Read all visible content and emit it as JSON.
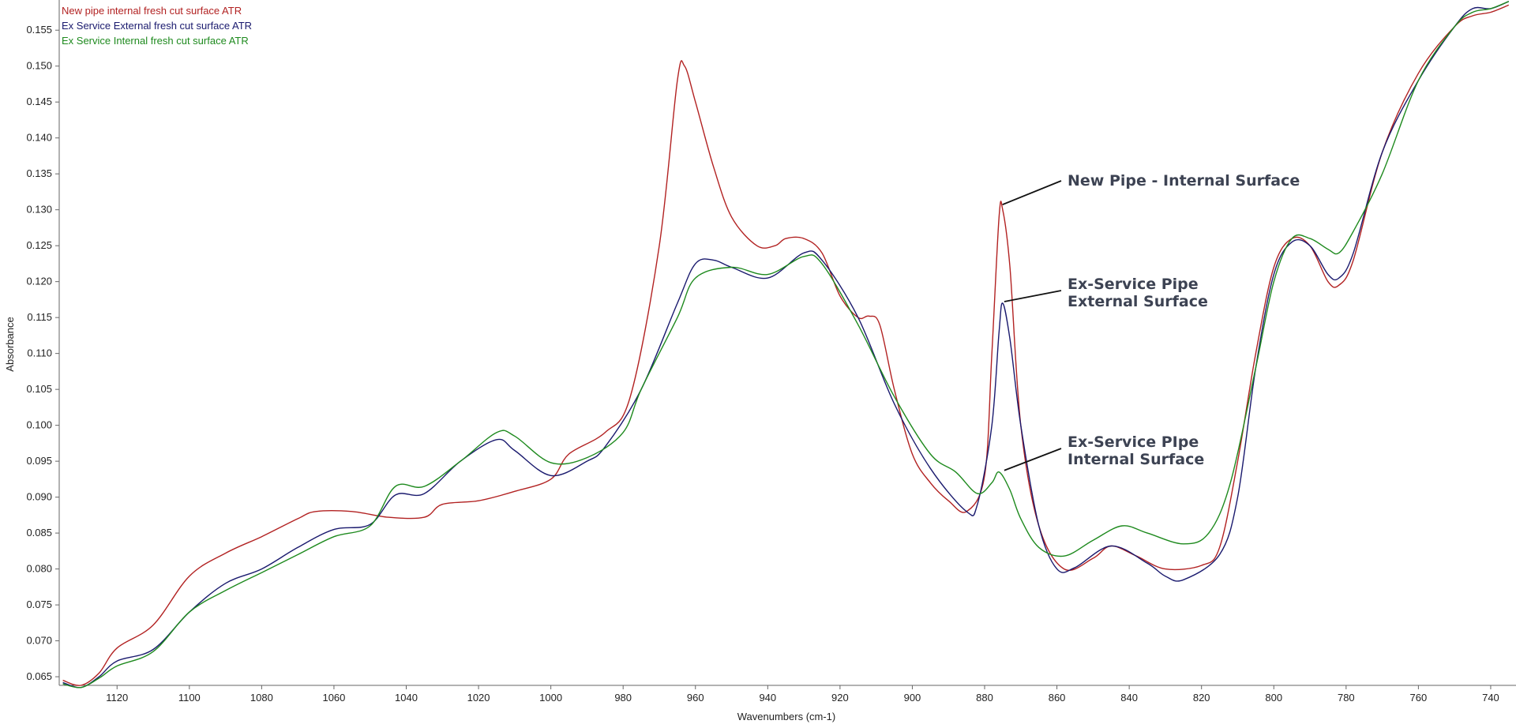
{
  "chart_data": {
    "type": "line",
    "xlabel": "Wavenumbers (cm-1)",
    "ylabel": "Absorbance",
    "xlim": [
      1136,
      733
    ],
    "ylim": [
      0.0638,
      0.1592
    ],
    "x_reversed": true,
    "x_ticks": [
      1120,
      1100,
      1080,
      1060,
      1040,
      1020,
      1000,
      980,
      960,
      940,
      920,
      900,
      880,
      860,
      840,
      820,
      800,
      780,
      760,
      740
    ],
    "y_ticks": [
      "0.065",
      "0.070",
      "0.075",
      "0.080",
      "0.085",
      "0.090",
      "0.095",
      "0.100",
      "0.105",
      "0.110",
      "0.115",
      "0.120",
      "0.125",
      "0.130",
      "0.135",
      "0.140",
      "0.145",
      "0.150",
      "0.155"
    ],
    "grid": false,
    "legend_position": "top-left",
    "series": [
      {
        "name": "New pipe internal fresh cut surface ATR",
        "color": "#b22222",
        "points": [
          [
            1135,
            0.0645
          ],
          [
            1130,
            0.0638
          ],
          [
            1125,
            0.0655
          ],
          [
            1120,
            0.069
          ],
          [
            1110,
            0.0722
          ],
          [
            1100,
            0.079
          ],
          [
            1090,
            0.0822
          ],
          [
            1080,
            0.0845
          ],
          [
            1070,
            0.087
          ],
          [
            1065,
            0.088
          ],
          [
            1055,
            0.088
          ],
          [
            1045,
            0.0872
          ],
          [
            1035,
            0.0872
          ],
          [
            1030,
            0.089
          ],
          [
            1020,
            0.0895
          ],
          [
            1010,
            0.0908
          ],
          [
            1000,
            0.0925
          ],
          [
            995,
            0.096
          ],
          [
            985,
            0.099
          ],
          [
            978,
            0.104
          ],
          [
            970,
            0.125
          ],
          [
            965,
            0.148
          ],
          [
            963,
            0.15
          ],
          [
            960,
            0.145
          ],
          [
            955,
            0.136
          ],
          [
            950,
            0.129
          ],
          [
            943,
            0.125
          ],
          [
            938,
            0.125
          ],
          [
            935,
            0.126
          ],
          [
            930,
            0.126
          ],
          [
            925,
            0.124
          ],
          [
            920,
            0.118
          ],
          [
            915,
            0.115
          ],
          [
            912,
            0.1152
          ],
          [
            909,
            0.114
          ],
          [
            905,
            0.105
          ],
          [
            900,
            0.096
          ],
          [
            895,
            0.092
          ],
          [
            890,
            0.0895
          ],
          [
            885,
            0.088
          ],
          [
            880,
            0.093
          ],
          [
            878,
            0.11
          ],
          [
            876,
            0.129
          ],
          [
            875,
            0.13
          ],
          [
            873,
            0.122
          ],
          [
            870,
            0.1
          ],
          [
            865,
            0.086
          ],
          [
            858,
            0.08
          ],
          [
            850,
            0.0815
          ],
          [
            845,
            0.0832
          ],
          [
            838,
            0.0818
          ],
          [
            830,
            0.08
          ],
          [
            820,
            0.0805
          ],
          [
            815,
            0.083
          ],
          [
            810,
            0.095
          ],
          [
            805,
            0.11
          ],
          [
            800,
            0.122
          ],
          [
            795,
            0.126
          ],
          [
            790,
            0.125
          ],
          [
            785,
            0.12
          ],
          [
            782,
            0.1195
          ],
          [
            778,
            0.123
          ],
          [
            770,
            0.138
          ],
          [
            760,
            0.149
          ],
          [
            750,
            0.1555
          ],
          [
            745,
            0.157
          ],
          [
            740,
            0.1575
          ],
          [
            735,
            0.1585
          ]
        ]
      },
      {
        "name": "Ex Service External fresh cut surface ATR",
        "color": "#1a1a6e",
        "points": [
          [
            1135,
            0.0642
          ],
          [
            1130,
            0.0635
          ],
          [
            1125,
            0.065
          ],
          [
            1120,
            0.0672
          ],
          [
            1110,
            0.0688
          ],
          [
            1100,
            0.074
          ],
          [
            1090,
            0.078
          ],
          [
            1080,
            0.08
          ],
          [
            1070,
            0.083
          ],
          [
            1060,
            0.0855
          ],
          [
            1050,
            0.0862
          ],
          [
            1043,
            0.0903
          ],
          [
            1035,
            0.0905
          ],
          [
            1025,
            0.095
          ],
          [
            1015,
            0.098
          ],
          [
            1010,
            0.0965
          ],
          [
            1000,
            0.093
          ],
          [
            990,
            0.095
          ],
          [
            985,
            0.097
          ],
          [
            975,
            0.105
          ],
          [
            965,
            0.117
          ],
          [
            960,
            0.1225
          ],
          [
            955,
            0.123
          ],
          [
            950,
            0.122
          ],
          [
            940,
            0.1205
          ],
          [
            930,
            0.124
          ],
          [
            925,
            0.123
          ],
          [
            915,
            0.115
          ],
          [
            905,
            0.103
          ],
          [
            895,
            0.094
          ],
          [
            885,
            0.088
          ],
          [
            882,
            0.089
          ],
          [
            878,
            0.1
          ],
          [
            876,
            0.113
          ],
          [
            875,
            0.117
          ],
          [
            873,
            0.112
          ],
          [
            870,
            0.1
          ],
          [
            865,
            0.086
          ],
          [
            860,
            0.08
          ],
          [
            855,
            0.0802
          ],
          [
            845,
            0.0832
          ],
          [
            835,
            0.0808
          ],
          [
            830,
            0.079
          ],
          [
            825,
            0.0785
          ],
          [
            815,
            0.082
          ],
          [
            810,
            0.09
          ],
          [
            805,
            0.108
          ],
          [
            800,
            0.121
          ],
          [
            795,
            0.1255
          ],
          [
            790,
            0.125
          ],
          [
            785,
            0.121
          ],
          [
            782,
            0.1205
          ],
          [
            778,
            0.124
          ],
          [
            770,
            0.138
          ],
          [
            760,
            0.148
          ],
          [
            750,
            0.1555
          ],
          [
            745,
            0.158
          ],
          [
            740,
            0.158
          ],
          [
            735,
            0.159
          ]
        ]
      },
      {
        "name": "Ex Service Internal fresh cut surface ATR",
        "color": "#1e8a1e",
        "points": [
          [
            1135,
            0.064
          ],
          [
            1130,
            0.0635
          ],
          [
            1125,
            0.0648
          ],
          [
            1120,
            0.0665
          ],
          [
            1110,
            0.0685
          ],
          [
            1100,
            0.074
          ],
          [
            1090,
            0.077
          ],
          [
            1080,
            0.0795
          ],
          [
            1070,
            0.082
          ],
          [
            1060,
            0.0845
          ],
          [
            1050,
            0.086
          ],
          [
            1043,
            0.0915
          ],
          [
            1035,
            0.0915
          ],
          [
            1025,
            0.095
          ],
          [
            1015,
            0.099
          ],
          [
            1010,
            0.0985
          ],
          [
            1000,
            0.0948
          ],
          [
            990,
            0.0955
          ],
          [
            980,
            0.099
          ],
          [
            975,
            0.105
          ],
          [
            965,
            0.115
          ],
          [
            960,
            0.1205
          ],
          [
            950,
            0.122
          ],
          [
            940,
            0.121
          ],
          [
            930,
            0.1235
          ],
          [
            925,
            0.1225
          ],
          [
            915,
            0.114
          ],
          [
            905,
            0.104
          ],
          [
            895,
            0.096
          ],
          [
            888,
            0.0935
          ],
          [
            882,
            0.0905
          ],
          [
            878,
            0.092
          ],
          [
            876,
            0.0935
          ],
          [
            873,
            0.091
          ],
          [
            870,
            0.087
          ],
          [
            865,
            0.083
          ],
          [
            858,
            0.0818
          ],
          [
            850,
            0.084
          ],
          [
            842,
            0.086
          ],
          [
            835,
            0.085
          ],
          [
            825,
            0.0835
          ],
          [
            818,
            0.085
          ],
          [
            812,
            0.092
          ],
          [
            805,
            0.108
          ],
          [
            800,
            0.12
          ],
          [
            795,
            0.126
          ],
          [
            790,
            0.126
          ],
          [
            785,
            0.1245
          ],
          [
            782,
            0.124
          ],
          [
            778,
            0.127
          ],
          [
            770,
            0.135
          ],
          [
            760,
            0.148
          ],
          [
            750,
            0.1555
          ],
          [
            745,
            0.1575
          ],
          [
            740,
            0.158
          ],
          [
            735,
            0.159
          ]
        ]
      }
    ],
    "annotations": [
      {
        "lines": [
          "New Pipe - Internal Surface"
        ],
        "point": [
          875.5,
          0.1305
        ]
      },
      {
        "lines": [
          "Ex-Service Pipe",
          "External Surface"
        ],
        "point": [
          875,
          0.117
        ]
      },
      {
        "lines": [
          "Ex-Service PIpe",
          "Internal Surface"
        ],
        "point": [
          875,
          0.0935
        ]
      }
    ]
  }
}
